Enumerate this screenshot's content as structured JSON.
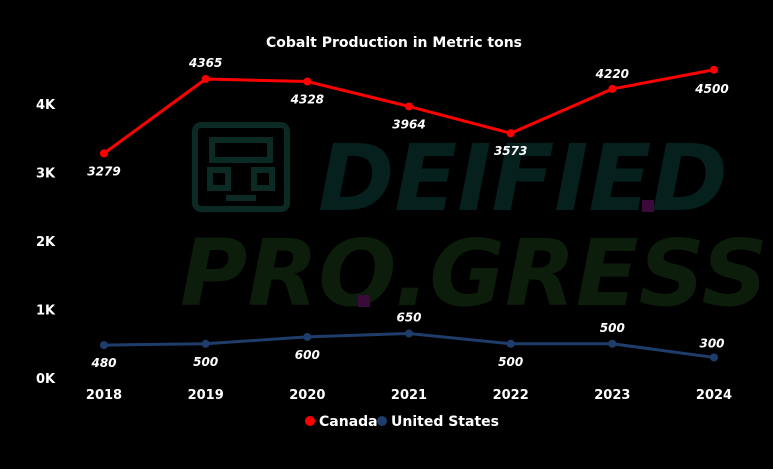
{
  "chart_data": {
    "type": "line",
    "title": "Cobalt Production in Metric tons",
    "categories": [
      "2018",
      "2019",
      "2020",
      "2021",
      "2022",
      "2023",
      "2024"
    ],
    "series": [
      {
        "name": "Canada",
        "color": "#ff0000",
        "values": [
          3279,
          4365,
          4328,
          3964,
          3573,
          4220,
          4500
        ],
        "labels": [
          "3279",
          "4365",
          "4328",
          "3964",
          "3573",
          "4220",
          "4500"
        ]
      },
      {
        "name": "United States",
        "color": "#1f3d6b",
        "values": [
          480,
          500,
          600,
          650,
          500,
          500,
          300
        ],
        "labels": [
          "480",
          "500",
          "600",
          "650",
          "500",
          "500",
          "300"
        ]
      }
    ],
    "y_ticks": [
      {
        "value": 0,
        "label": "0K"
      },
      {
        "value": 1000,
        "label": "1K"
      },
      {
        "value": 2000,
        "label": "2K"
      },
      {
        "value": 3000,
        "label": "3K"
      },
      {
        "value": 4000,
        "label": "4K"
      }
    ],
    "ylim": [
      0,
      4000
    ],
    "xlabel": "",
    "ylabel": "",
    "grid": false,
    "legend": "bottom-center"
  },
  "watermark": {
    "line1": "DEIFIED",
    "line2": "PRO.GRESS",
    "color_line1": "#06211d",
    "color_line2": "#0d1d0b",
    "dot_color": "#3a0a3a"
  }
}
